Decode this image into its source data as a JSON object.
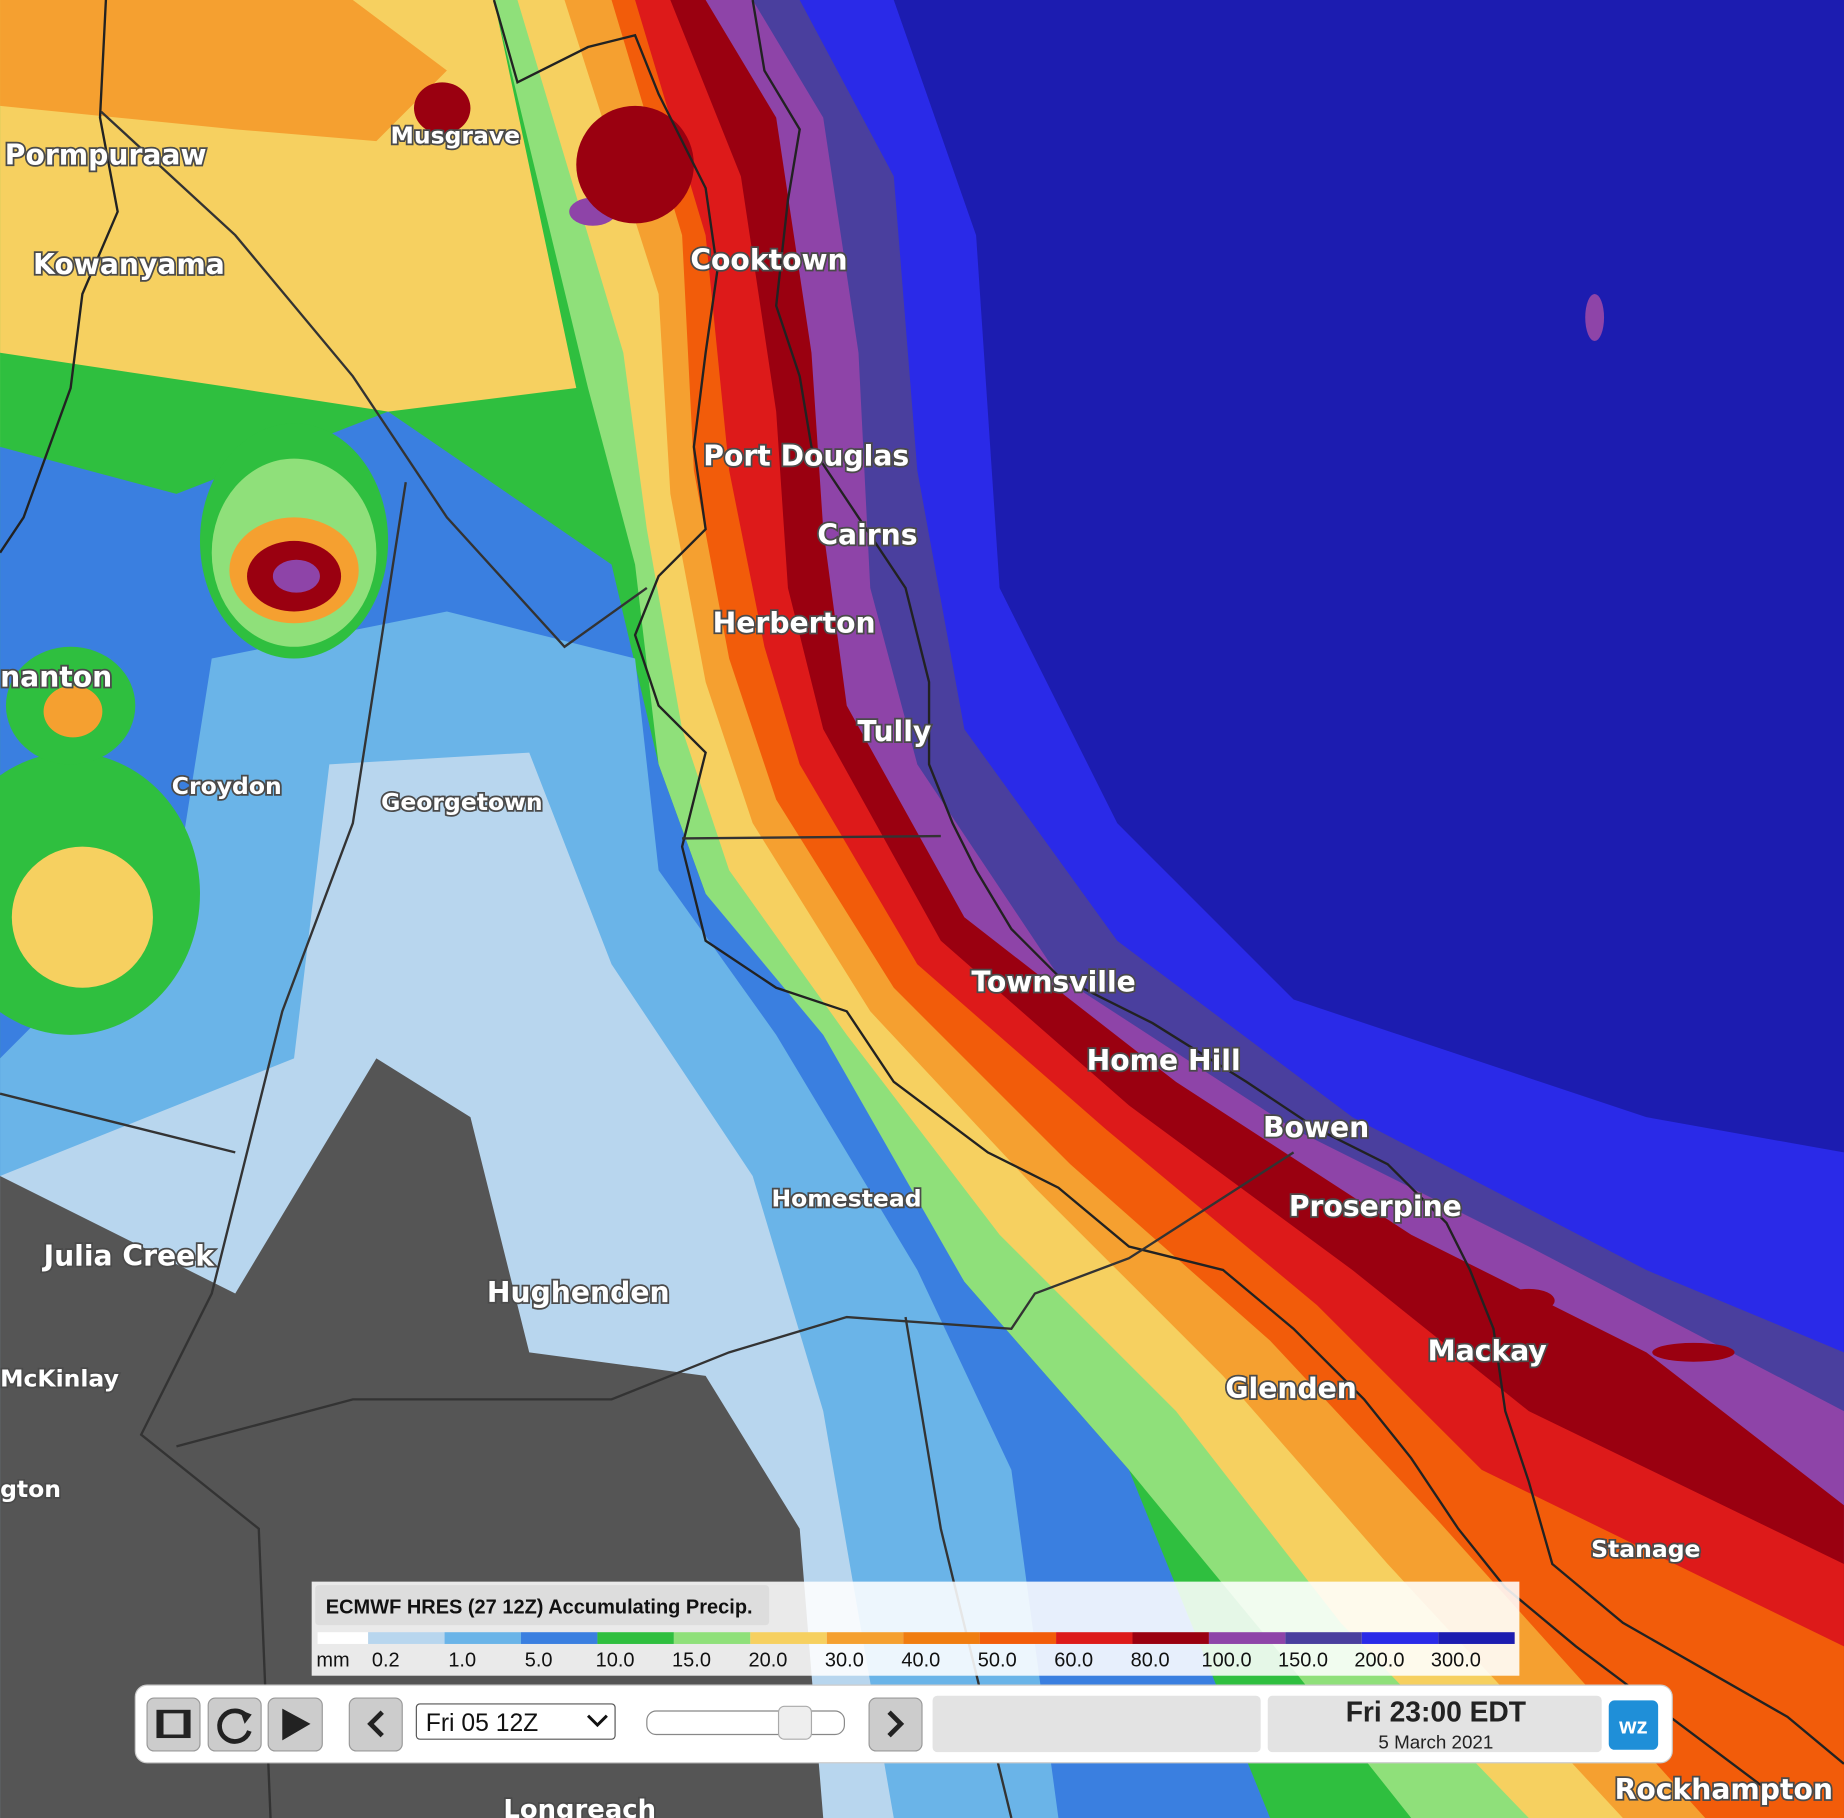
{
  "map": {
    "places": [
      "Pormpuraaw",
      "Musgrave",
      "Kowanyama",
      "Cooktown",
      "Port Douglas",
      "Cairns",
      "Herberton",
      "nanton",
      "Croydon",
      "Georgetown",
      "Tully",
      "Townsville",
      "Home Hill",
      "Bowen",
      "Proserpine",
      "Homestead",
      "Julia Creek",
      "Hughenden",
      "McKinlay",
      "gton",
      "Mackay",
      "Glenden",
      "Stanage",
      "Longreach",
      "Rockhampton"
    ]
  },
  "legend": {
    "title": "ECMWF HRES (27 12Z) Accumulating Precip.",
    "unit": "mm",
    "levels": [
      "0.2",
      "1.0",
      "5.0",
      "10.0",
      "15.0",
      "20.0",
      "30.0",
      "40.0",
      "50.0",
      "60.0",
      "80.0",
      "100.0",
      "150.0",
      "200.0",
      "300.0"
    ],
    "colors": [
      "#b8d6ee",
      "#6ab4e8",
      "#3a7fe0",
      "#2fbf3f",
      "#8fe07a",
      "#f6d060",
      "#f5a030",
      "#f07d10",
      "#f25c0a",
      "#dd1a1a",
      "#9a0010",
      "#8e44a8",
      "#4a3f9e",
      "#2a2ae8",
      "#1c1cb0"
    ]
  },
  "controls": {
    "run_select": "Fri 05 12Z",
    "time": "Fri 23:00 EDT",
    "date": "5 March 2021",
    "logo": "wz"
  }
}
